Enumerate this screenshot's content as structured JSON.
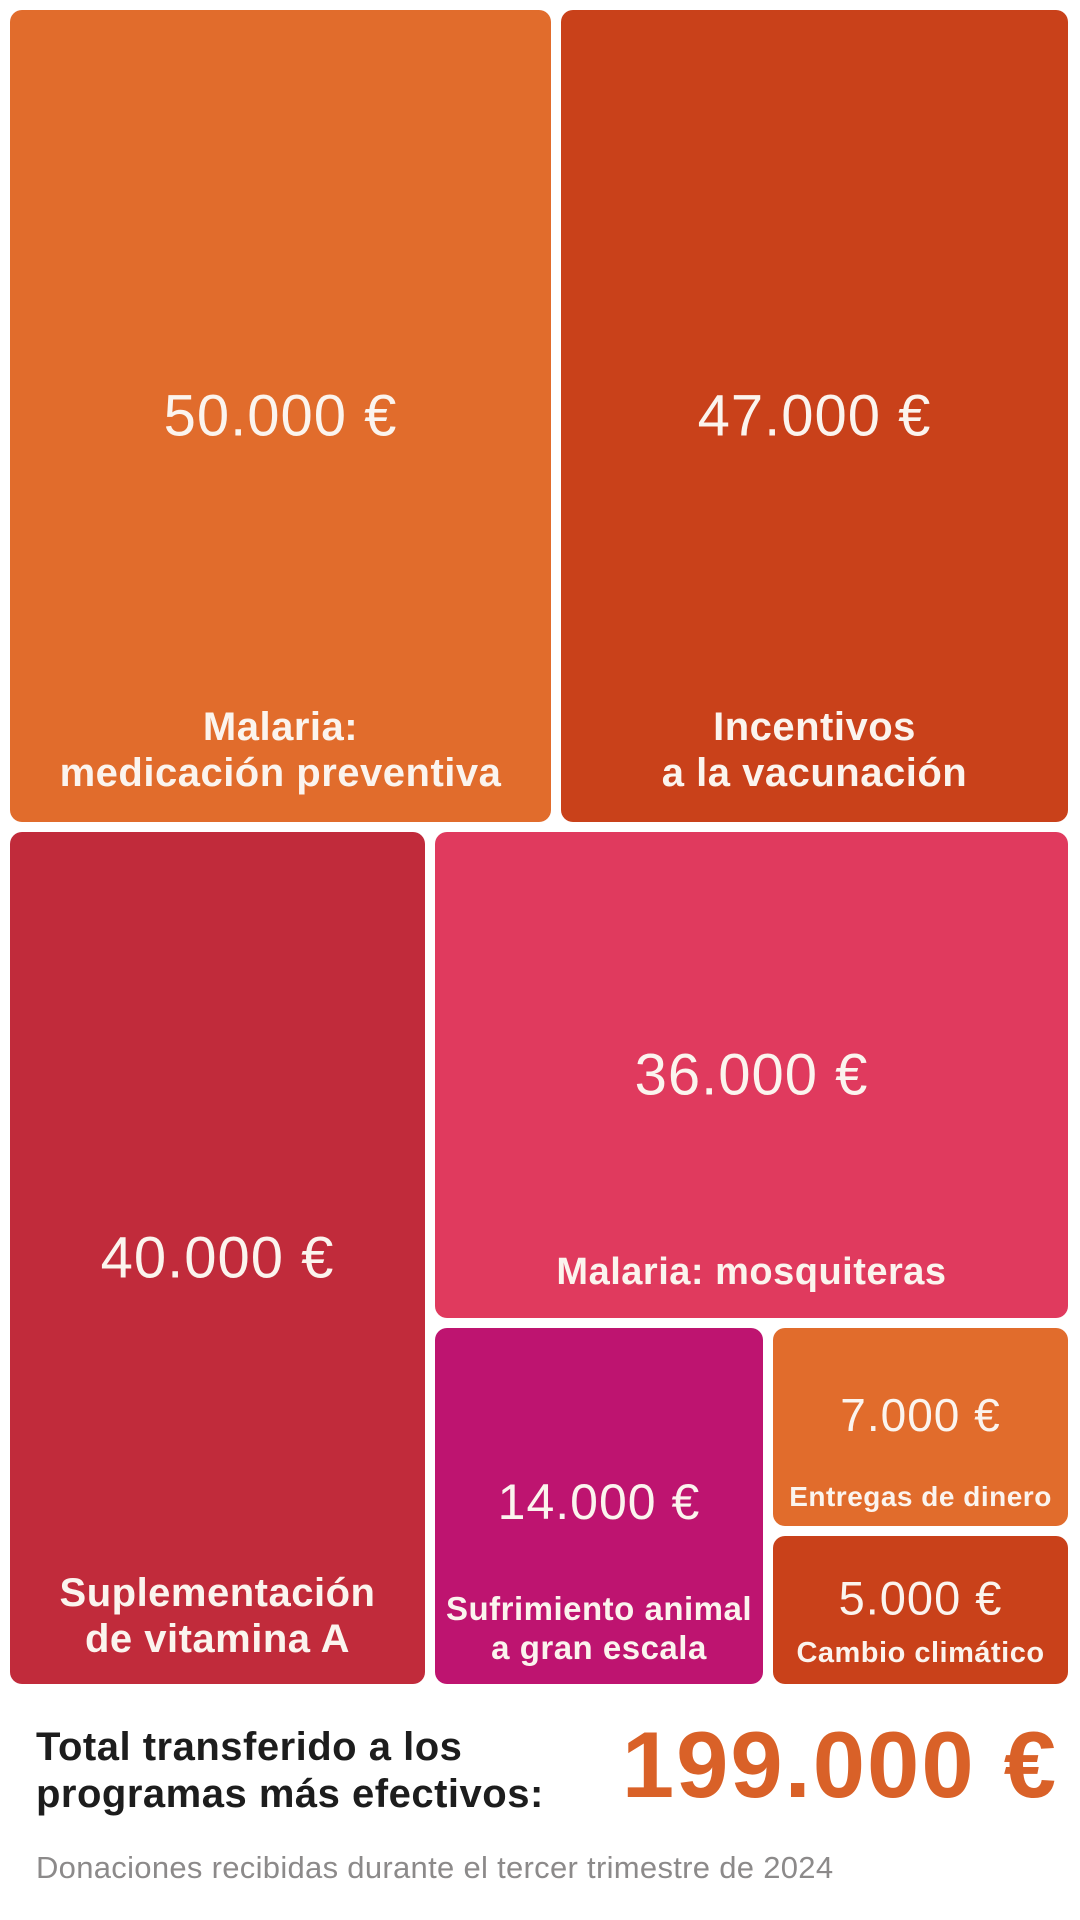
{
  "chart_data": {
    "type": "treemap",
    "unit": "€",
    "items": [
      {
        "name": "malaria-medicacion-preventiva",
        "label": "Malaria: medicación preventiva",
        "line1": "Malaria:",
        "line2": "medicación preventiva",
        "value": 50000,
        "value_label": "50.000 €",
        "color": "#E16C2C"
      },
      {
        "name": "incentivos-vacunacion",
        "label": "Incentivos a la vacunación",
        "line1": "Incentivos",
        "line2": "a la vacunación",
        "value": 47000,
        "value_label": "47.000 €",
        "color": "#C9411A"
      },
      {
        "name": "suplementacion-vitamina-a",
        "label": "Suplementación de vitamina A",
        "line1": "Suplementación",
        "line2": "de vitamina A",
        "value": 40000,
        "value_label": "40.000 €",
        "color": "#C12B3B"
      },
      {
        "name": "malaria-mosquiteras",
        "label": "Malaria: mosquiteras",
        "line1": "Malaria: mosquiteras",
        "value": 36000,
        "value_label": "36.000 €",
        "color": "#E03A5E"
      },
      {
        "name": "sufrimiento-animal",
        "label": "Sufrimiento animal a gran escala",
        "line1": "Sufrimiento animal",
        "line2": "a gran escala",
        "value": 14000,
        "value_label": "14.000 €",
        "color": "#BE1470"
      },
      {
        "name": "entregas-de-dinero",
        "label": "Entregas de dinero",
        "line1": "Entregas de dinero",
        "value": 7000,
        "value_label": "7.000 €",
        "color": "#E16C2C"
      },
      {
        "name": "cambio-climatico",
        "label": "Cambio climático",
        "line1": "Cambio climático",
        "value": 5000,
        "value_label": "5.000 €",
        "color": "#C9411A"
      }
    ],
    "total": {
      "line1": "Total transferido a los",
      "line2": "programas más efectivos:",
      "label": "Total transferido a los programas más efectivos:",
      "value": 199000,
      "value_label": "199.000 €",
      "color": "#D96128"
    },
    "footnote": "Donaciones recibidas durante el tercer trimestre de 2024",
    "text_color_on_tiles": "#FBF4EE",
    "background": "#FFFFFF"
  }
}
